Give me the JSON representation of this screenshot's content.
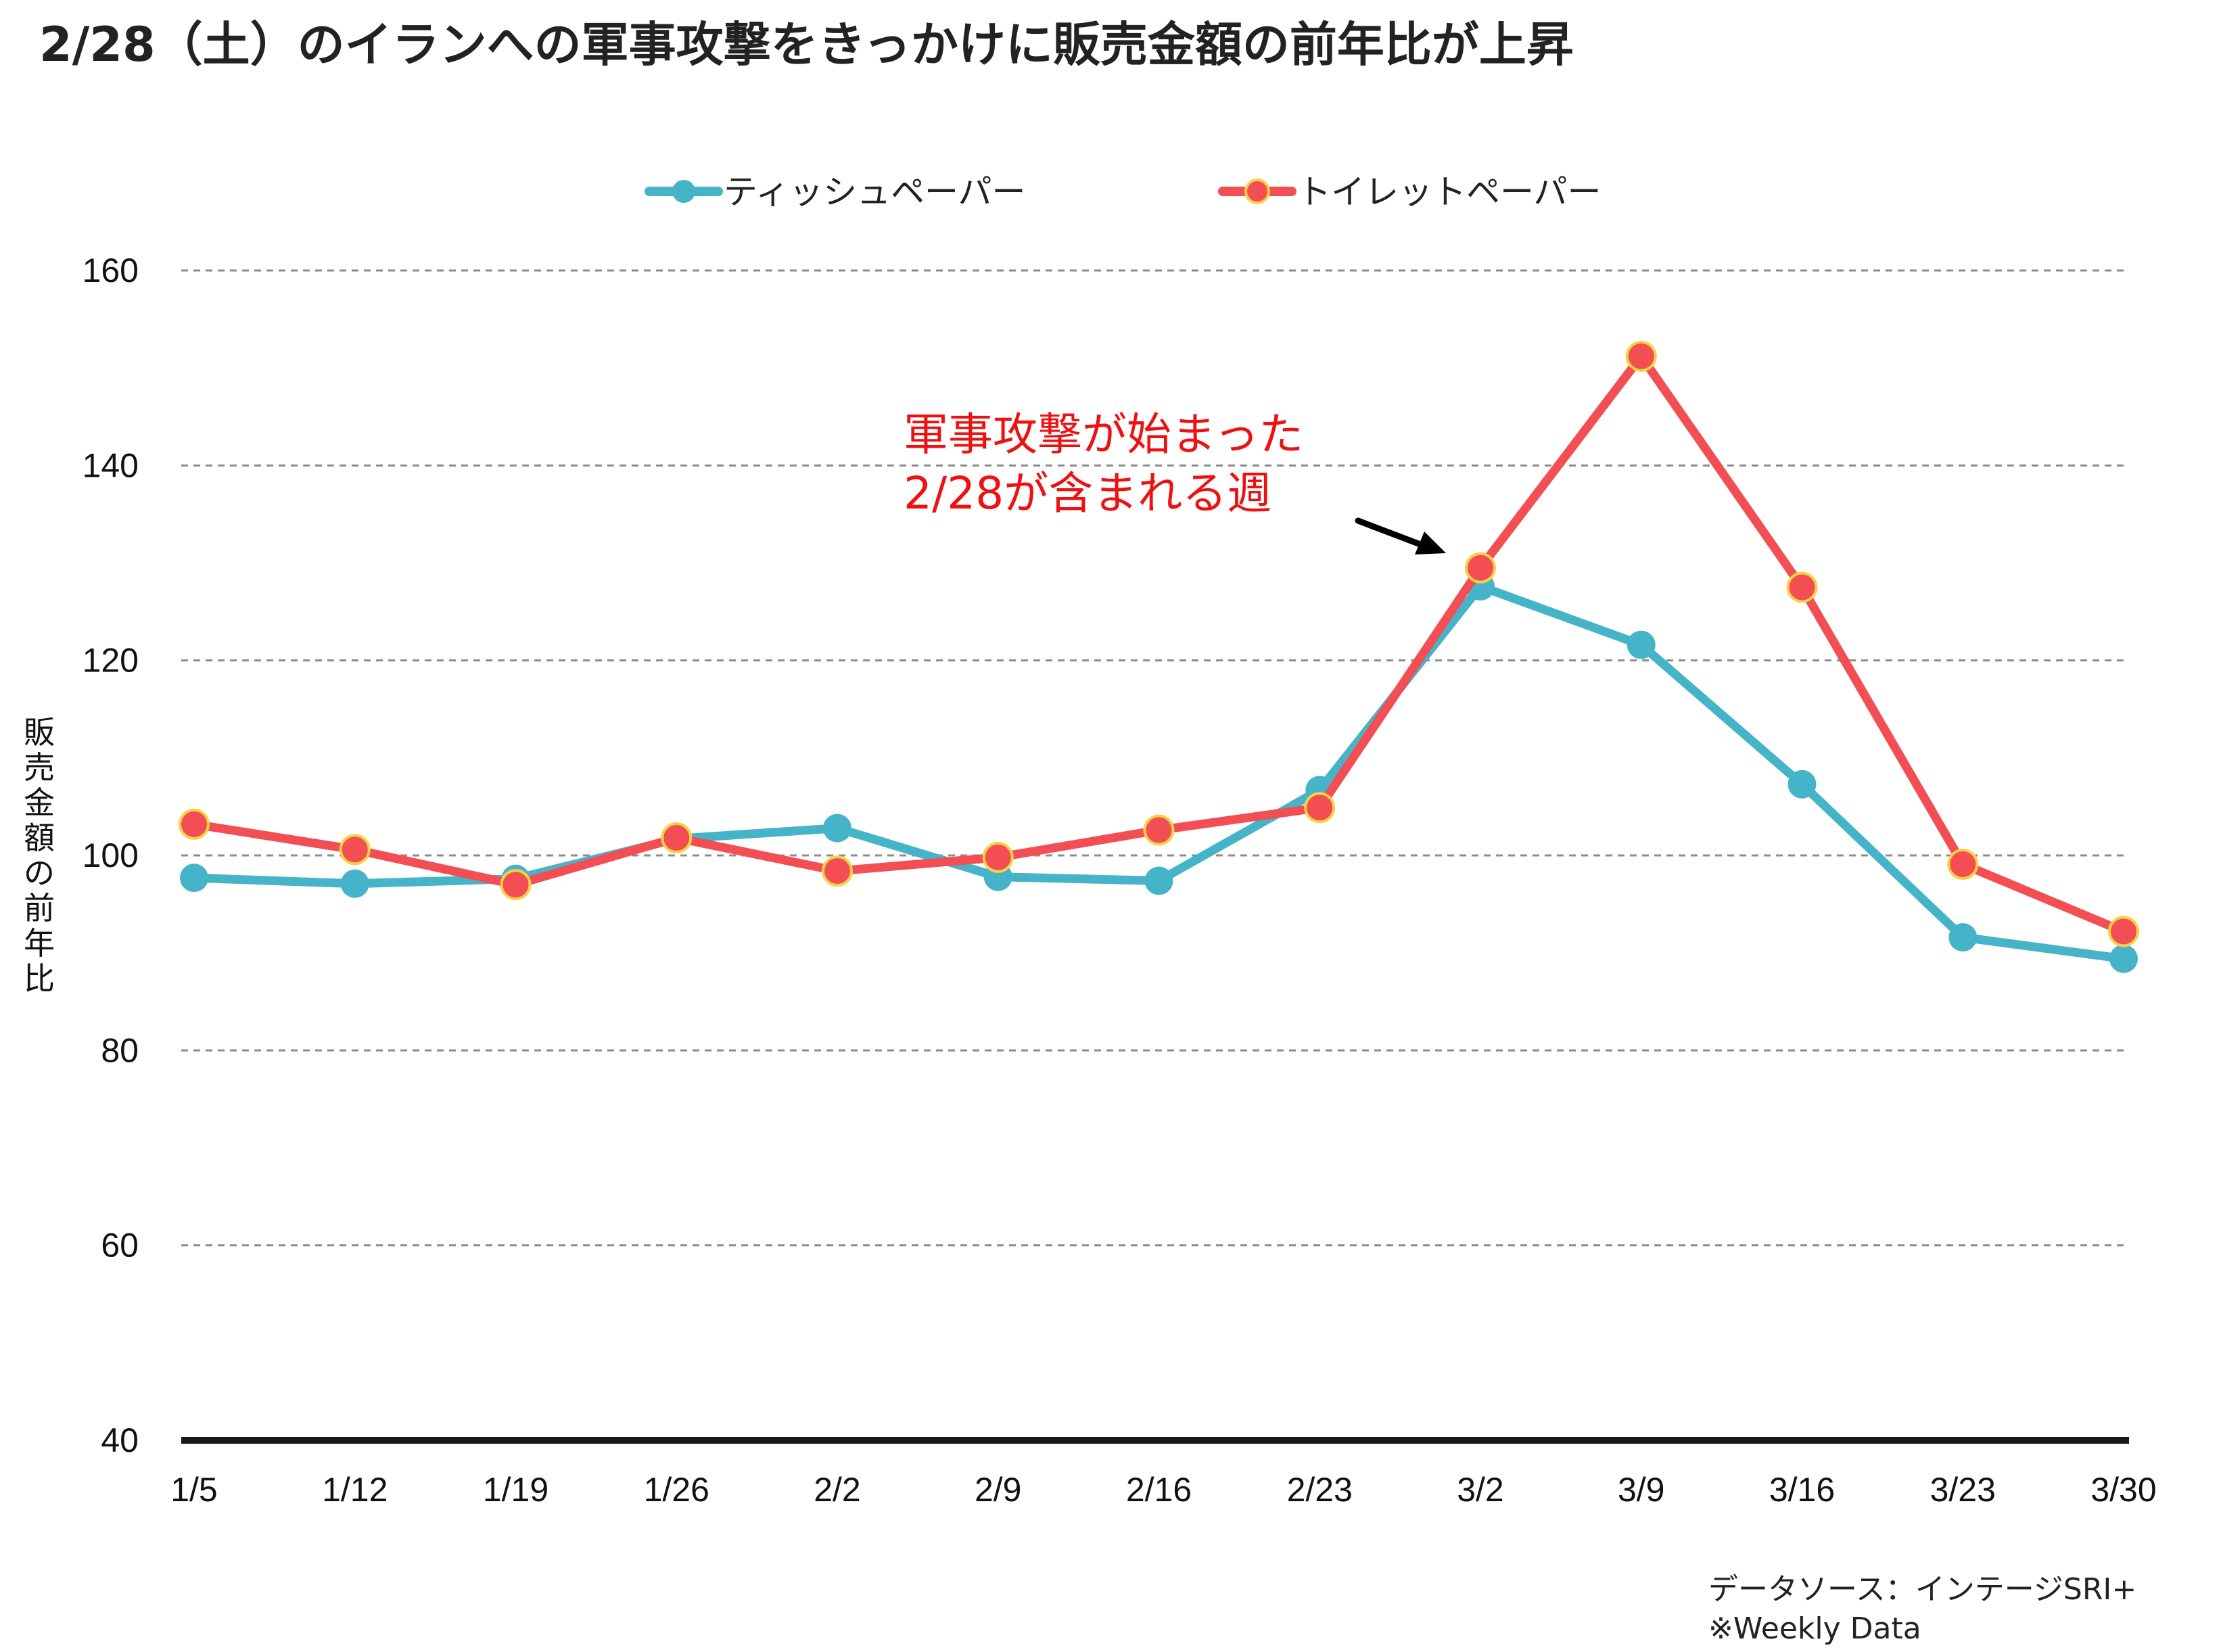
{
  "chart_data": {
    "type": "line",
    "title": "2/28（土）のイランへの軍事攻撃をきっかけに販売金額の前年比が上昇",
    "ylabel": "販売金額の前年比",
    "xlabel": "",
    "categories": [
      "1/5",
      "1/12",
      "1/19",
      "1/26",
      "2/2",
      "2/9",
      "2/16",
      "2/23",
      "3/2",
      "3/9",
      "3/16",
      "3/23",
      "3/30"
    ],
    "ylim": [
      40,
      160
    ],
    "yticks": [
      40,
      60,
      80,
      100,
      120,
      140,
      160
    ],
    "grid": true,
    "legend_position": "top-center",
    "series": [
      {
        "name": "ティッシュペーパー",
        "color": "#46b4c8",
        "values": [
          97.7,
          97.1,
          97.6,
          101.7,
          102.8,
          97.8,
          97.4,
          106.7,
          127.6,
          121.6,
          107.3,
          91.6,
          89.4
        ]
      },
      {
        "name": "トイレットペーパー",
        "color": "#f24e54",
        "marker_edge": "#f5d245",
        "values": [
          103.2,
          100.6,
          97.0,
          101.8,
          98.4,
          99.8,
          102.6,
          104.9,
          129.5,
          151.2,
          127.5,
          99.1,
          92.2
        ]
      }
    ],
    "annotation": {
      "lines": [
        "軍事攻撃が始まった",
        "2/28が含まれる週"
      ],
      "color": "#ee1111",
      "target_category": "3/2"
    },
    "source_lines": [
      "データソース：インテージSRI+",
      "※Weekly Data"
    ]
  }
}
